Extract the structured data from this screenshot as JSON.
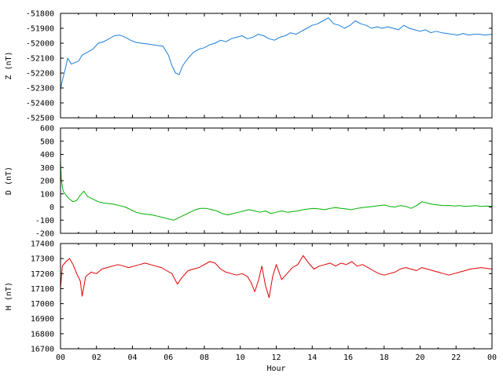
{
  "chart_data": [
    {
      "type": "line",
      "ylabel": "Z (nT)",
      "xlabel": "",
      "xlim": [
        0,
        24
      ],
      "ylim": [
        -52500,
        -51800
      ],
      "yticks": [
        -51800,
        -51900,
        -52000,
        -52100,
        -52200,
        -52300,
        -52400,
        -52500
      ],
      "color": "#1a7fd8",
      "x": [
        0,
        0.1,
        0.25,
        0.4,
        0.6,
        0.8,
        1.0,
        1.2,
        1.5,
        1.8,
        2.1,
        2.4,
        2.7,
        3.0,
        3.3,
        3.6,
        3.9,
        4.2,
        4.5,
        4.8,
        5.1,
        5.4,
        5.7,
        6.0,
        6.2,
        6.4,
        6.6,
        6.8,
        7.1,
        7.4,
        7.7,
        8.0,
        8.3,
        8.6,
        8.9,
        9.2,
        9.5,
        9.8,
        10.1,
        10.4,
        10.7,
        11.0,
        11.3,
        11.6,
        11.9,
        12.2,
        12.5,
        12.8,
        13.1,
        13.4,
        13.7,
        14.0,
        14.3,
        14.6,
        14.9,
        15.2,
        15.5,
        15.8,
        16.1,
        16.4,
        16.7,
        17.0,
        17.3,
        17.6,
        17.9,
        18.2,
        18.5,
        18.8,
        19.1,
        19.4,
        19.7,
        20.0,
        20.3,
        20.6,
        20.9,
        21.2,
        21.5,
        21.8,
        22.1,
        22.4,
        22.7,
        23.0,
        23.3,
        23.6,
        24.0
      ],
      "y": [
        -52310,
        -52250,
        -52180,
        -52100,
        -52140,
        -52130,
        -52120,
        -52080,
        -52060,
        -52040,
        -52000,
        -51990,
        -51970,
        -51950,
        -51945,
        -51960,
        -51980,
        -51995,
        -52000,
        -52005,
        -52010,
        -52015,
        -52020,
        -52080,
        -52150,
        -52200,
        -52210,
        -52150,
        -52100,
        -52060,
        -52040,
        -52030,
        -52010,
        -52000,
        -51980,
        -51990,
        -51970,
        -51960,
        -51950,
        -51970,
        -51960,
        -51940,
        -51950,
        -51970,
        -51980,
        -51960,
        -51950,
        -51930,
        -51940,
        -51920,
        -51900,
        -51880,
        -51870,
        -51850,
        -51830,
        -51870,
        -51880,
        -51900,
        -51880,
        -51850,
        -51870,
        -51880,
        -51900,
        -51890,
        -51900,
        -51890,
        -51900,
        -51910,
        -51880,
        -51900,
        -51910,
        -51920,
        -51910,
        -51930,
        -51920,
        -51930,
        -51935,
        -51940,
        -51945,
        -51935,
        -51945,
        -51940,
        -51940,
        -51945,
        -51940
      ]
    },
    {
      "type": "line",
      "ylabel": "D (nT)",
      "xlabel": "",
      "xlim": [
        0,
        24
      ],
      "ylim": [
        -200,
        600
      ],
      "yticks": [
        600,
        500,
        400,
        300,
        200,
        100,
        0,
        -100,
        -200
      ],
      "color": "#00b000",
      "x": [
        0,
        0.05,
        0.15,
        0.3,
        0.5,
        0.7,
        0.9,
        1.1,
        1.3,
        1.5,
        1.8,
        2.1,
        2.4,
        2.7,
        3.0,
        3.3,
        3.6,
        3.9,
        4.2,
        4.5,
        4.8,
        5.1,
        5.4,
        5.7,
        6.0,
        6.3,
        6.6,
        6.9,
        7.2,
        7.5,
        7.8,
        8.1,
        8.4,
        8.7,
        9.0,
        9.3,
        9.6,
        9.9,
        10.2,
        10.5,
        10.8,
        11.1,
        11.4,
        11.7,
        12.0,
        12.3,
        12.6,
        12.9,
        13.2,
        13.5,
        13.8,
        14.1,
        14.4,
        14.7,
        15.0,
        15.3,
        15.6,
        15.9,
        16.2,
        16.5,
        16.8,
        17.1,
        17.4,
        17.7,
        18.0,
        18.3,
        18.6,
        18.9,
        19.2,
        19.5,
        19.8,
        20.1,
        20.4,
        20.7,
        21.0,
        21.3,
        21.6,
        21.9,
        22.2,
        22.5,
        22.8,
        23.1,
        23.4,
        23.7,
        24.0
      ],
      "y": [
        350,
        200,
        120,
        90,
        60,
        40,
        50,
        90,
        120,
        80,
        60,
        40,
        30,
        25,
        20,
        10,
        0,
        -20,
        -40,
        -50,
        -55,
        -60,
        -70,
        -80,
        -90,
        -100,
        -80,
        -60,
        -40,
        -20,
        -10,
        -10,
        -20,
        -30,
        -50,
        -60,
        -50,
        -40,
        -30,
        -20,
        -30,
        -40,
        -30,
        -50,
        -40,
        -30,
        -40,
        -35,
        -30,
        -20,
        -15,
        -10,
        -15,
        -20,
        -10,
        -5,
        -10,
        -15,
        -20,
        -10,
        -5,
        0,
        5,
        10,
        15,
        5,
        0,
        10,
        5,
        -10,
        10,
        40,
        30,
        20,
        15,
        10,
        12,
        8,
        10,
        5,
        8,
        10,
        5,
        8,
        5
      ]
    },
    {
      "type": "line",
      "ylabel": "H (nT)",
      "xlabel": "Hour",
      "xlim": [
        0,
        24
      ],
      "xticks": [
        "00",
        "02",
        "04",
        "06",
        "08",
        "10",
        "12",
        "14",
        "16",
        "18",
        "20",
        "22",
        "00"
      ],
      "ylim": [
        16700,
        17400
      ],
      "yticks": [
        17400,
        17300,
        17200,
        17100,
        17000,
        16900,
        16800,
        16700
      ],
      "color": "#e00000",
      "x": [
        0,
        0.1,
        0.3,
        0.5,
        0.7,
        0.9,
        1.1,
        1.2,
        1.4,
        1.7,
        2.0,
        2.3,
        2.6,
        2.9,
        3.2,
        3.5,
        3.8,
        4.1,
        4.4,
        4.7,
        5.0,
        5.3,
        5.6,
        5.9,
        6.2,
        6.5,
        6.8,
        7.1,
        7.4,
        7.7,
        8.0,
        8.3,
        8.6,
        8.9,
        9.2,
        9.5,
        9.8,
        10.1,
        10.4,
        10.6,
        10.8,
        11.0,
        11.2,
        11.4,
        11.6,
        11.8,
        12.0,
        12.3,
        12.6,
        12.9,
        13.2,
        13.5,
        13.8,
        14.1,
        14.4,
        14.7,
        15.0,
        15.3,
        15.6,
        15.9,
        16.2,
        16.5,
        16.8,
        17.1,
        17.4,
        17.7,
        18.0,
        18.3,
        18.6,
        18.9,
        19.2,
        19.5,
        19.8,
        20.1,
        20.4,
        20.7,
        21.0,
        21.3,
        21.6,
        21.9,
        22.2,
        22.5,
        22.8,
        23.1,
        23.4,
        23.7,
        24.0
      ],
      "y": [
        17100,
        17250,
        17280,
        17300,
        17260,
        17200,
        17150,
        17050,
        17180,
        17210,
        17200,
        17230,
        17240,
        17250,
        17260,
        17250,
        17240,
        17250,
        17260,
        17270,
        17260,
        17250,
        17240,
        17220,
        17200,
        17130,
        17180,
        17220,
        17230,
        17240,
        17260,
        17280,
        17270,
        17230,
        17210,
        17200,
        17190,
        17200,
        17180,
        17140,
        17080,
        17150,
        17250,
        17120,
        17040,
        17180,
        17260,
        17160,
        17200,
        17240,
        17260,
        17320,
        17270,
        17230,
        17250,
        17260,
        17270,
        17250,
        17270,
        17260,
        17280,
        17250,
        17260,
        17240,
        17220,
        17200,
        17190,
        17200,
        17210,
        17230,
        17240,
        17230,
        17220,
        17240,
        17230,
        17220,
        17210,
        17200,
        17190,
        17200,
        17210,
        17220,
        17230,
        17235,
        17240,
        17235,
        17230
      ]
    }
  ]
}
